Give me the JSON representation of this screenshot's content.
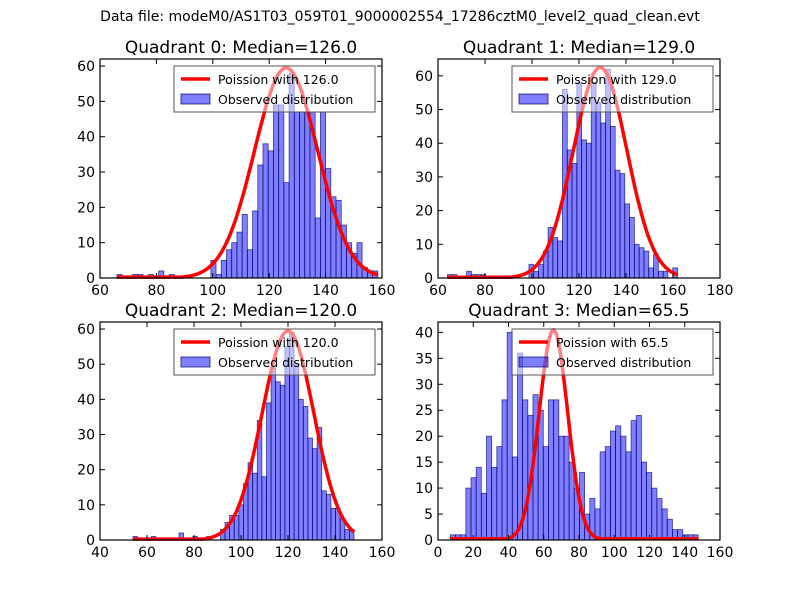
{
  "suptitle": "Data file: modeM0/AS1T03_059T01_9000002554_17286cztM0_level2_quad_clean.evt",
  "colors": {
    "bar_fill": "#0000ff",
    "bar_fill_opacity": 0.5,
    "bar_edge": "#000066",
    "poisson_line": "#ff0000"
  },
  "chart_data": [
    {
      "type": "bar",
      "title": "Quadrant 0: Median=126.0",
      "legend": [
        "Poission with 126.0",
        "Observed distribution"
      ],
      "legend_position": "top-right",
      "xlim": [
        60,
        160
      ],
      "ylim": [
        0,
        62
      ],
      "xticks": [
        60,
        80,
        100,
        120,
        140,
        160
      ],
      "yticks": [
        0,
        10,
        20,
        30,
        40,
        50,
        60
      ],
      "bins_start": 66,
      "bin_width": 1.85,
      "bar_values": [
        1,
        0,
        0,
        1,
        1,
        0,
        1,
        0,
        2,
        0,
        1,
        0,
        0,
        0,
        0,
        0,
        0,
        0,
        5,
        1,
        5,
        8,
        10,
        13,
        18,
        8,
        19,
        32,
        38,
        36,
        49,
        49,
        27,
        58,
        47,
        47,
        47,
        47,
        17,
        47,
        31,
        23,
        22,
        15,
        10,
        7,
        10,
        3,
        2,
        2
      ],
      "poisson_mean": 126.0,
      "poisson_peak": 59.5,
      "poisson_sigma": 11.2
    },
    {
      "type": "bar",
      "title": "Quadrant 1: Median=129.0",
      "legend": [
        "Poission with 129.0",
        "Observed distribution"
      ],
      "legend_position": "top-right",
      "xlim": [
        60,
        180
      ],
      "ylim": [
        0,
        65
      ],
      "xticks": [
        60,
        80,
        100,
        120,
        140,
        160,
        180
      ],
      "yticks": [
        0,
        10,
        20,
        30,
        40,
        50,
        60
      ],
      "bins_start": 64,
      "bin_width": 2.04,
      "bar_values": [
        1,
        1,
        0,
        0,
        2,
        1,
        1,
        1,
        0,
        0,
        0,
        0,
        0,
        0,
        0,
        0,
        0,
        4,
        2,
        4,
        8,
        15,
        12,
        11,
        56,
        38,
        34,
        58,
        41,
        40,
        58,
        52,
        46,
        62,
        45,
        32,
        31,
        22,
        18,
        10,
        9,
        8,
        3,
        7,
        2,
        2,
        0,
        3
      ],
      "poisson_mean": 129.0,
      "poisson_peak": 62.5,
      "poisson_sigma": 11.4
    },
    {
      "type": "bar",
      "title": "Quadrant 2: Median=120.0",
      "legend": [
        "Poission with 120.0",
        "Observed distribution"
      ],
      "legend_position": "top-right",
      "xlim": [
        40,
        160
      ],
      "ylim": [
        0,
        62
      ],
      "xticks": [
        40,
        60,
        80,
        100,
        120,
        140,
        160
      ],
      "yticks": [
        0,
        10,
        20,
        30,
        40,
        50,
        60
      ],
      "bins_start": 54,
      "bin_width": 1.96,
      "bar_values": [
        1,
        0,
        0,
        0,
        1,
        0,
        0,
        0,
        0,
        0,
        2,
        0,
        0,
        1,
        0,
        0,
        1,
        0,
        0,
        3,
        5,
        7,
        7,
        10,
        16,
        22,
        19,
        34,
        18,
        39,
        49,
        45,
        44,
        55,
        59,
        50,
        40,
        38,
        29,
        26,
        32,
        14,
        13,
        9,
        9,
        6,
        3,
        3
      ],
      "poisson_mean": 120.0,
      "poisson_peak": 59.5,
      "poisson_sigma": 11.0
    },
    {
      "type": "bar",
      "title": "Quadrant 3: Median=65.5",
      "legend": [
        "Poission with 65.5",
        "Observed distribution"
      ],
      "legend_position": "top-right",
      "xlim": [
        0,
        160
      ],
      "ylim": [
        0,
        42
      ],
      "xticks": [
        0,
        20,
        40,
        60,
        80,
        100,
        120,
        140,
        160
      ],
      "yticks": [
        0,
        5,
        10,
        15,
        20,
        25,
        30,
        35,
        40
      ],
      "bins_start": 7,
      "bin_width": 2.93,
      "bar_values": [
        1,
        1,
        1,
        10,
        12,
        14,
        9,
        20,
        14,
        18,
        27,
        40,
        16,
        36,
        27,
        24,
        28,
        25,
        18,
        27,
        27,
        20,
        20,
        15,
        10,
        13,
        5,
        8,
        6,
        17,
        18,
        21,
        22,
        20,
        17,
        23,
        24,
        15,
        13,
        10,
        8,
        6,
        4,
        2,
        2,
        1,
        1,
        1
      ],
      "poisson_mean": 65.5,
      "poisson_peak": 40.5,
      "poisson_sigma": 8.1
    }
  ]
}
